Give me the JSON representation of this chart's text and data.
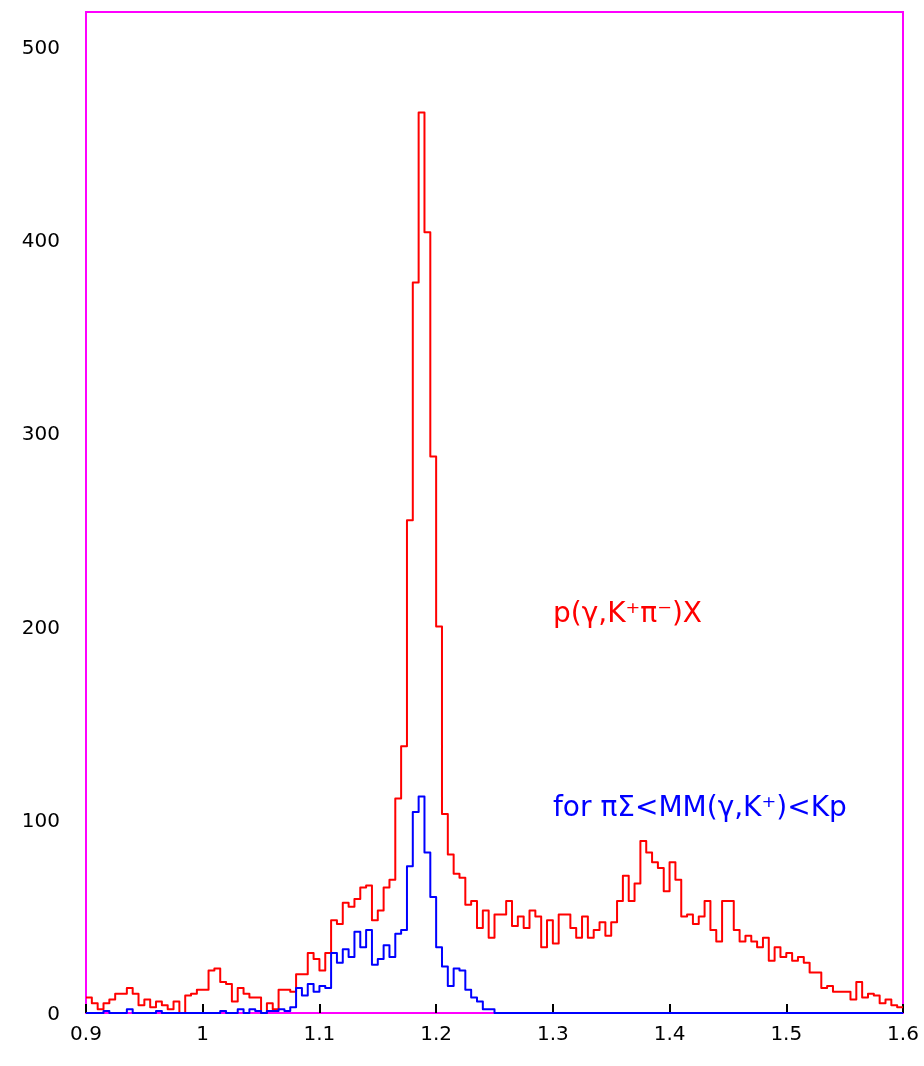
{
  "chart_data": {
    "type": "histogram",
    "bins": [
      0.9,
      0.905,
      0.91,
      0.915,
      0.92,
      0.925,
      0.93,
      0.935,
      0.94,
      0.945,
      0.95,
      0.955,
      0.96,
      0.965,
      0.97,
      0.975,
      0.98,
      0.985,
      0.99,
      0.995,
      1,
      1.005,
      1.01,
      1.015,
      1.02,
      1.025,
      1.03,
      1.035,
      1.04,
      1.045,
      1.05,
      1.055,
      1.06,
      1.065,
      1.07,
      1.075,
      1.08,
      1.085,
      1.09,
      1.095,
      1.1,
      1.105,
      1.11,
      1.115,
      1.12,
      1.125,
      1.13,
      1.135,
      1.14,
      1.145,
      1.15,
      1.155,
      1.16,
      1.165,
      1.17,
      1.175,
      1.18,
      1.185,
      1.19,
      1.195,
      1.2,
      1.205,
      1.21,
      1.215,
      1.22,
      1.225,
      1.23,
      1.235,
      1.24,
      1.245,
      1.25,
      1.255,
      1.26,
      1.265,
      1.27,
      1.275,
      1.28,
      1.285,
      1.29,
      1.295,
      1.3,
      1.305,
      1.31,
      1.315,
      1.32,
      1.325,
      1.33,
      1.335,
      1.34,
      1.345,
      1.35,
      1.355,
      1.36,
      1.365,
      1.37,
      1.375,
      1.38,
      1.385,
      1.39,
      1.395,
      1.4,
      1.405,
      1.41,
      1.415,
      1.42,
      1.425,
      1.43,
      1.435,
      1.44,
      1.445,
      1.45,
      1.455,
      1.46,
      1.465,
      1.47,
      1.475,
      1.48,
      1.485,
      1.49,
      1.495,
      1.5,
      1.505,
      1.51,
      1.515,
      1.52,
      1.525,
      1.53,
      1.535,
      1.54,
      1.545,
      1.55,
      1.555,
      1.56,
      1.565,
      1.57,
      1.575,
      1.58,
      1.585,
      1.59,
      1.595,
      1.6
    ],
    "series": [
      {
        "name": "p(γ,K⁺π⁻)X",
        "color": "#ff0000",
        "values": [
          8,
          5,
          2,
          5,
          7,
          10,
          10,
          13,
          10,
          4,
          7,
          3,
          6,
          4,
          2,
          6,
          0,
          9,
          10,
          12,
          12,
          22,
          23,
          16,
          15,
          6,
          13,
          10,
          8,
          8,
          0,
          5,
          2,
          12,
          12,
          11,
          20,
          20,
          31,
          28,
          22,
          31,
          48,
          46,
          57,
          55,
          59,
          65,
          66,
          48,
          53,
          65,
          69,
          111,
          138,
          255,
          378,
          466,
          404,
          288,
          200,
          103,
          82,
          72,
          70,
          56,
          58,
          44,
          53,
          39,
          51,
          51,
          58,
          45,
          50,
          44,
          53,
          50,
          34,
          48,
          36,
          51,
          51,
          44,
          39,
          50,
          39,
          43,
          47,
          40,
          47,
          58,
          71,
          58,
          67,
          89,
          83,
          78,
          75,
          63,
          78,
          69,
          50,
          51,
          46,
          50,
          58,
          43,
          37,
          58,
          58,
          43,
          37,
          40,
          37,
          34,
          39,
          27,
          34,
          29,
          31,
          27,
          29,
          26,
          21,
          21,
          13,
          14,
          11,
          11,
          11,
          7,
          16,
          8,
          10,
          9,
          5,
          7,
          4,
          3
        ]
      },
      {
        "name": "for πΣ<MM(γ,K⁺)<Kp",
        "color": "#0000ff",
        "values": [
          0,
          0,
          0,
          1,
          0,
          0,
          0,
          2,
          0,
          0,
          0,
          0,
          1,
          0,
          0,
          0,
          0,
          0,
          0,
          0,
          0,
          0,
          0,
          1,
          0,
          0,
          2,
          0,
          2,
          1,
          0,
          1,
          1,
          2,
          1,
          3,
          13,
          9,
          15,
          11,
          14,
          13,
          31,
          26,
          33,
          29,
          42,
          34,
          43,
          25,
          28,
          35,
          29,
          41,
          43,
          76,
          104,
          112,
          83,
          60,
          34,
          24,
          14,
          23,
          22,
          12,
          8,
          6,
          2,
          2,
          0,
          0,
          0,
          0,
          0,
          0,
          0,
          0,
          0,
          0,
          0,
          0,
          0,
          0,
          0,
          0,
          0,
          0,
          0,
          0,
          0,
          0,
          0,
          0,
          0,
          0,
          0,
          0,
          0,
          0,
          0,
          0,
          0,
          0,
          0,
          0,
          0,
          0,
          0,
          0,
          0,
          0,
          0,
          0,
          0,
          0,
          0,
          0,
          0,
          0,
          0,
          0,
          0,
          0,
          0,
          0,
          0,
          0,
          0,
          0,
          0,
          0,
          0,
          0,
          0,
          0,
          0,
          0,
          0,
          0
        ]
      }
    ],
    "xlim": [
      0.9,
      1.6
    ],
    "xticks": [
      0.9,
      1,
      1.1,
      1.2,
      1.3,
      1.4,
      1.5,
      1.6
    ],
    "ylim": [
      0,
      518
    ],
    "yticks": [
      0,
      100,
      200,
      300,
      400,
      500
    ],
    "grid": false,
    "legend": false
  }
}
